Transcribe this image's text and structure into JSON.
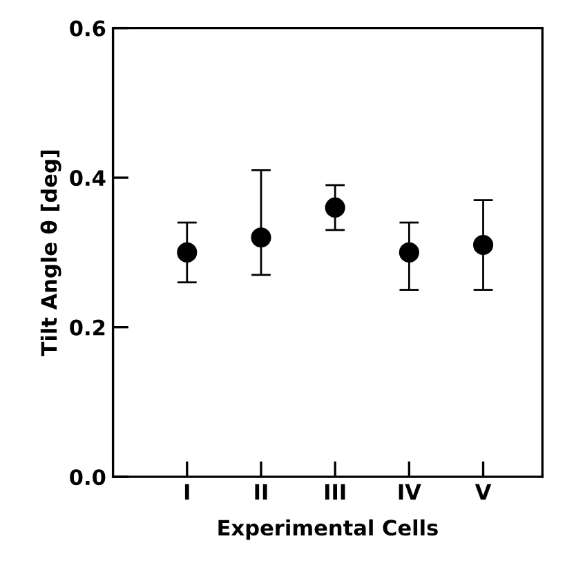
{
  "chart_data": {
    "type": "scatter",
    "xlabel": "Experimental Cells",
    "ylabel": "Tilt Angle θ [deg]",
    "categories": [
      "I",
      "II",
      "III",
      "IV",
      "V"
    ],
    "series": [
      {
        "color": "#000000",
        "values": [
          0.3,
          0.32,
          0.36,
          0.3,
          0.31
        ],
        "errors": [
          [
            0.26,
            0.34
          ],
          [
            0.27,
            0.41
          ],
          [
            0.33,
            0.39
          ],
          [
            0.25,
            0.34
          ],
          [
            0.25,
            0.37
          ]
        ]
      }
    ],
    "ylim": [
      0,
      0.6
    ],
    "yticks": [
      {
        "value": 0,
        "label": "0.0"
      },
      {
        "value": 0.2,
        "label": "0.2"
      },
      {
        "value": 0.4,
        "label": "0.4"
      },
      {
        "value": 0.6,
        "label": "0.6"
      }
    ],
    "marker": "circle",
    "grid": false
  }
}
